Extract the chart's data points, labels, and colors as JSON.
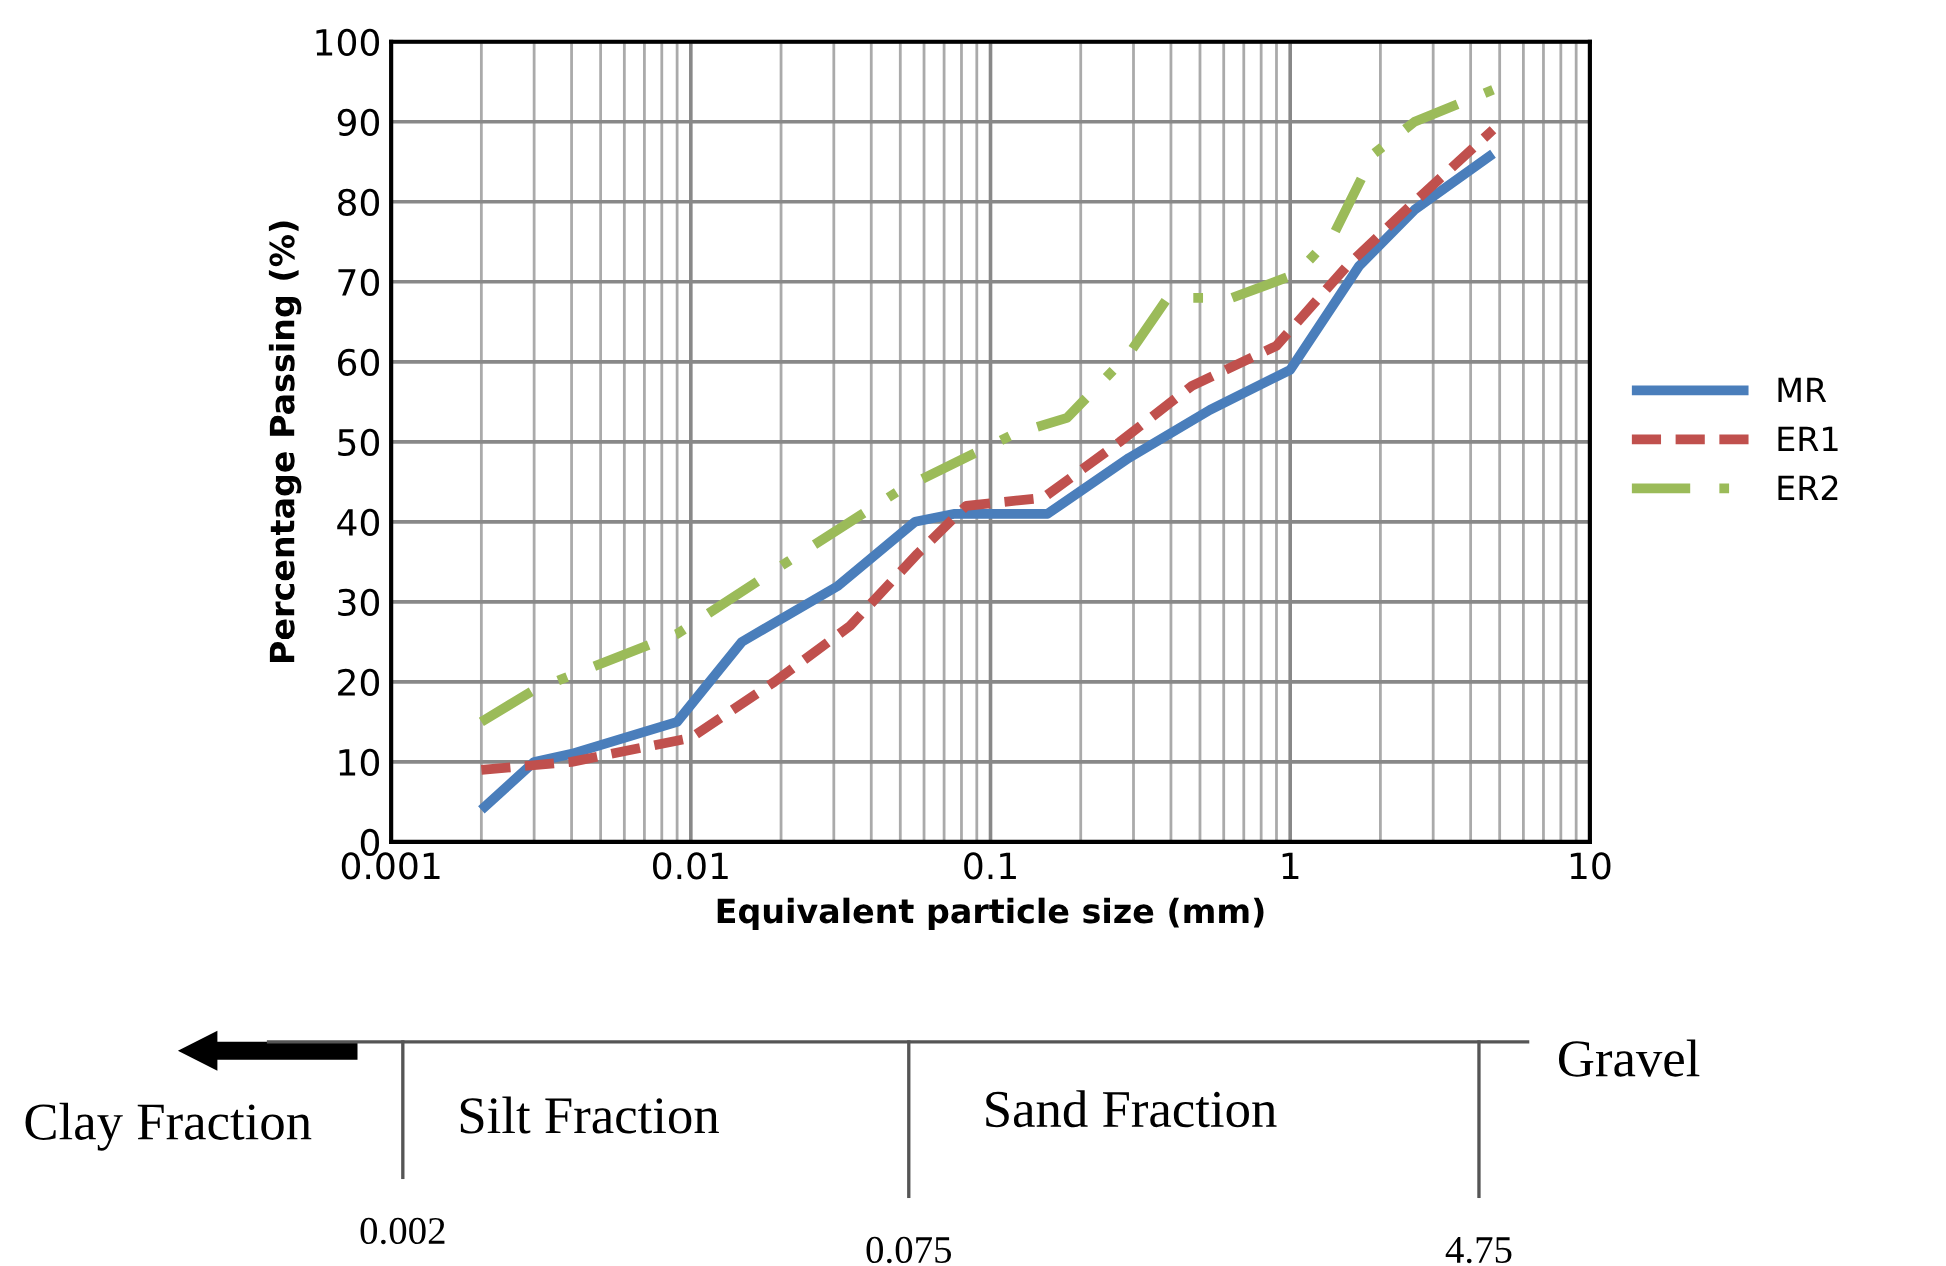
{
  "chart_data": {
    "type": "line",
    "xlabel": "Equivalent particle size (mm)",
    "ylabel": "Percentage Passing (%)",
    "log": "x",
    "xlim": [
      0.001,
      10
    ],
    "xticks": [
      {
        "value": 0.001,
        "label": "0.001"
      },
      {
        "value": 0.01,
        "label": "0.01"
      },
      {
        "value": 0.1,
        "label": "0.1"
      },
      1,
      10
    ],
    "ylim": [
      0,
      100
    ],
    "yticks": [
      0,
      10,
      20,
      30,
      40,
      50,
      60,
      70,
      80,
      90,
      100
    ],
    "grid": true,
    "legend": "right",
    "marker": "none",
    "series": [
      {
        "name": "MR",
        "color": "#4a7ebb",
        "line_style": "solid",
        "x": [
          0.002,
          0.003,
          0.004,
          0.009,
          0.0148,
          0.031,
          0.056,
          0.076,
          0.155,
          0.29,
          0.54,
          1,
          1.7,
          2.6,
          4.75
        ],
        "values": [
          4,
          10,
          11,
          15,
          25,
          32,
          40,
          41,
          41,
          48,
          54,
          59,
          72,
          79,
          86
        ]
      },
      {
        "name": "ER1",
        "color": "#c0504d",
        "line_style": "dashed",
        "x": [
          0.002,
          0.004,
          0.01,
          0.019,
          0.034,
          0.057,
          0.083,
          0.15,
          0.27,
          0.47,
          0.9,
          1.55,
          2.6,
          4.75
        ],
        "values": [
          9,
          10,
          13,
          20,
          27,
          36,
          42,
          43,
          50,
          57,
          62,
          72,
          80,
          89
        ]
      },
      {
        "name": "ER2",
        "color": "#9bbb59",
        "line_style": "dashdot",
        "x": [
          0.002,
          0.003,
          0.009,
          0.021,
          0.05,
          0.12,
          0.18,
          0.29,
          0.39,
          0.64,
          1.05,
          1.4,
          1.9,
          2.6,
          4.75
        ],
        "values": [
          15,
          19,
          26,
          35,
          44,
          51,
          53,
          61,
          68,
          68,
          71,
          76,
          86,
          90,
          94
        ]
      }
    ],
    "annotations": [
      "Clay Fraction",
      "Silt Fraction",
      "Sand Fraction",
      "Gravel",
      "0.002",
      "0.075",
      "4.75"
    ]
  }
}
